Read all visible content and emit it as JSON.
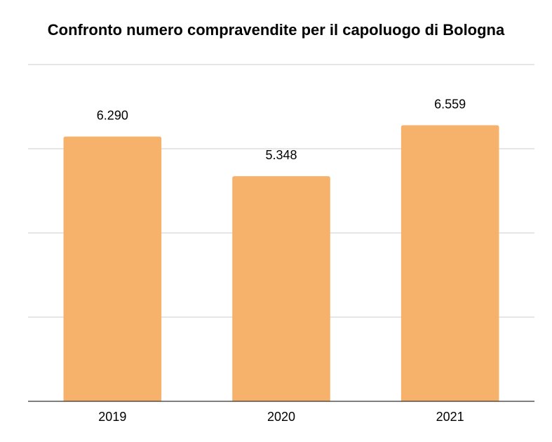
{
  "chart_data": {
    "type": "bar",
    "title": "Confronto numero compravendite per il capoluogo di Bologna",
    "categories": [
      "2019",
      "2020",
      "2021"
    ],
    "values": [
      6290,
      5348,
      6559
    ],
    "data_labels": [
      "6.290",
      "5.348",
      "6.559"
    ],
    "xlabel": "",
    "ylabel": "",
    "ylim": [
      0,
      8000
    ],
    "gridlines": [
      0,
      2000,
      4000,
      6000,
      8000
    ],
    "grid": true,
    "legend": "none",
    "colors": {
      "bar": "#F6B26B",
      "grid": "#CCCCCC",
      "axis": "#333333",
      "text": "#000000"
    }
  }
}
